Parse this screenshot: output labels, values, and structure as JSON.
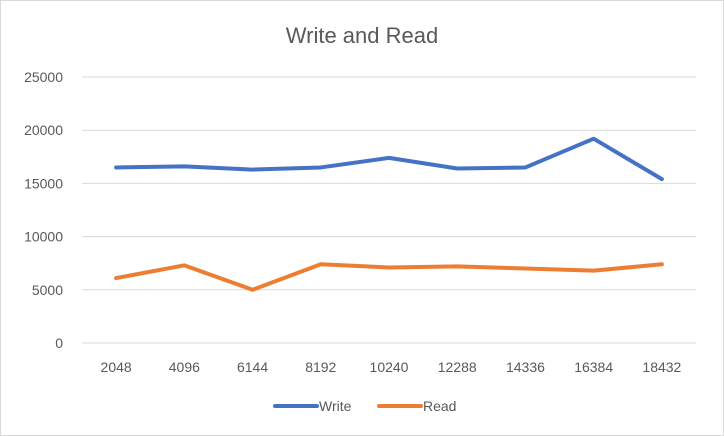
{
  "chart_data": {
    "type": "line",
    "title": "Write and Read",
    "xlabel": "",
    "ylabel": "",
    "categories": [
      "2048",
      "4096",
      "6144",
      "8192",
      "10240",
      "12288",
      "14336",
      "16384",
      "18432"
    ],
    "ylim": [
      0,
      25000
    ],
    "yticks": [
      0,
      5000,
      10000,
      15000,
      20000,
      25000
    ],
    "grid": true,
    "legend": "bottom",
    "series": [
      {
        "name": "Write",
        "color": "#4472C4",
        "values": [
          16500,
          16600,
          16300,
          16500,
          17400,
          16400,
          16500,
          19200,
          15400
        ]
      },
      {
        "name": "Read",
        "color": "#ED7D31",
        "values": [
          6100,
          7300,
          5000,
          7400,
          7100,
          7200,
          7000,
          6800,
          7400
        ]
      }
    ]
  }
}
